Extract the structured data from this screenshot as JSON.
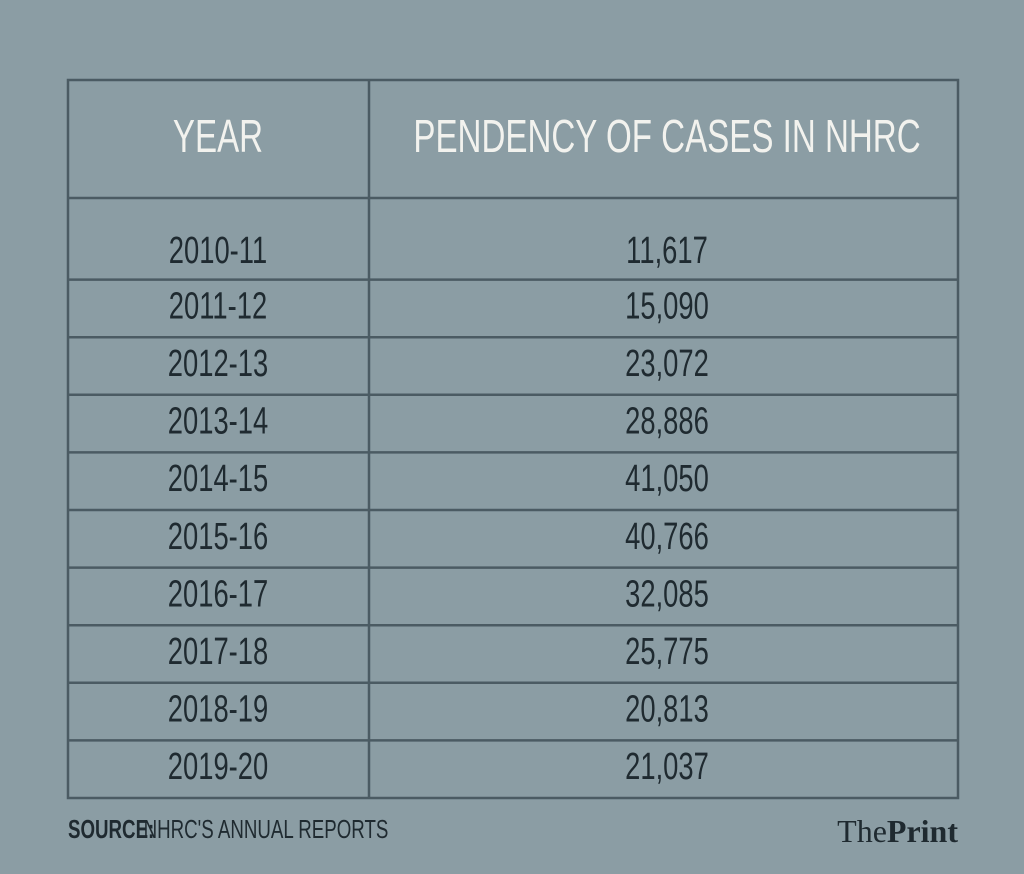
{
  "table": {
    "header": [
      "YEAR",
      "PENDENCY OF CASES IN NHRC"
    ],
    "rows": [
      [
        "2010-11",
        "11,617"
      ],
      [
        "2011-12",
        "15,090"
      ],
      [
        "2012-13",
        "23,072"
      ],
      [
        "2013-14",
        "28,886"
      ],
      [
        "2014-15",
        "41,050"
      ],
      [
        "2015-16",
        "40,766"
      ],
      [
        "2016-17",
        "32,085"
      ],
      [
        "2017-18",
        "25,775"
      ],
      [
        "2018-19",
        "20,813"
      ],
      [
        "2019-20",
        "21,037"
      ]
    ]
  },
  "footer": {
    "source_label": "SOURCE:",
    "source_text": "NHRC'S ANNUAL REPORTS",
    "logo_the": "The",
    "logo_print": "Print"
  }
}
